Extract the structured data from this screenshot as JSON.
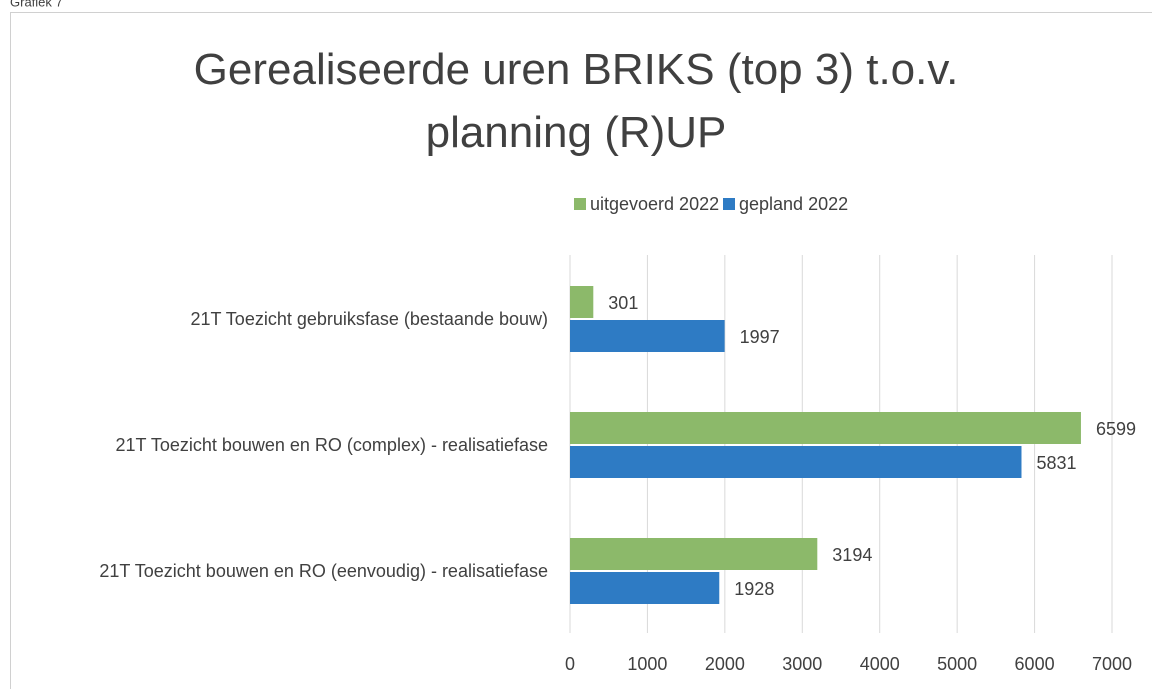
{
  "caption": "Grafiek 7",
  "chart_data": {
    "type": "hbar",
    "title": "Gerealiseerde uren BRIKS (top 3) t.o.v. planning (R)UP",
    "categories": [
      "21T Toezicht gebruiksfase (bestaande bouw)",
      "21T Toezicht bouwen en RO (complex) - realisatiefase",
      "21T Toezicht bouwen en RO (eenvoudig) - realisatiefase"
    ],
    "series": [
      {
        "name": "uitgevoerd 2022",
        "color": "#8cb96a",
        "values": [
          301,
          6599,
          3194
        ]
      },
      {
        "name": "gepland 2022",
        "color": "#2e7bc4",
        "values": [
          1997,
          5831,
          1928
        ]
      }
    ],
    "xlim": [
      0,
      7000
    ],
    "xticks": [
      0,
      1000,
      2000,
      3000,
      4000,
      5000,
      6000,
      7000
    ],
    "grid": true,
    "legend": "top"
  }
}
